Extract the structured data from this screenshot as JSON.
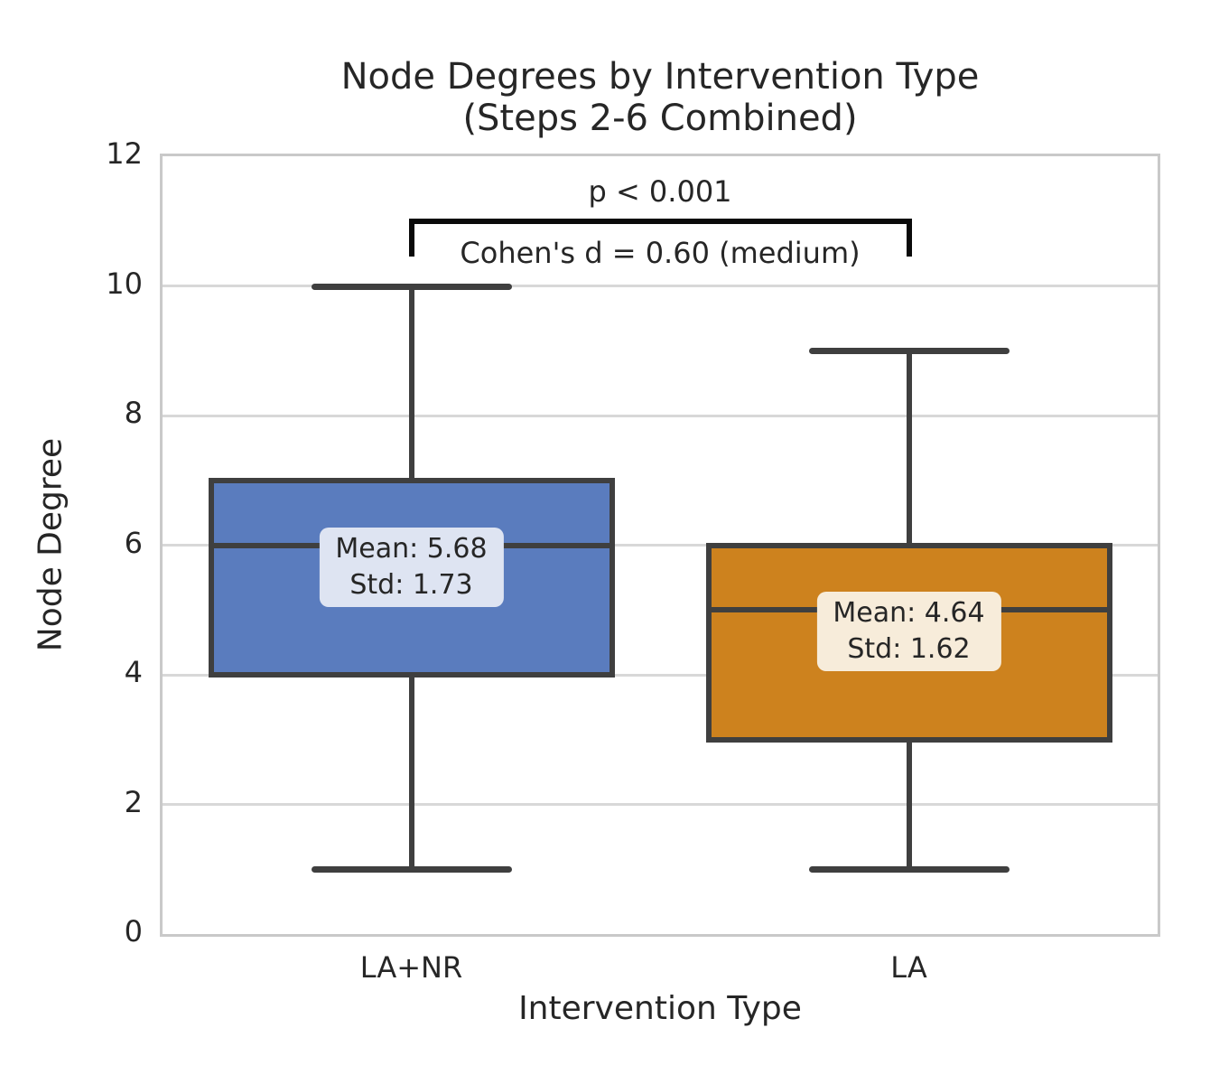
{
  "chart_data": {
    "type": "box",
    "title_lines": [
      "Node Degrees by Intervention Type",
      "(Steps 2-6 Combined)"
    ],
    "xlabel": "Intervention Type",
    "ylabel": "Node Degree",
    "ylim": [
      0,
      12
    ],
    "yticks": [
      0,
      2,
      4,
      6,
      8,
      10,
      12
    ],
    "grid": true,
    "legend": "none",
    "categories": [
      "LA+NR",
      "LA"
    ],
    "boxes": [
      {
        "category": "LA+NR",
        "whisker_low": 1,
        "q1": 4,
        "median": 6,
        "q3": 7,
        "whisker_high": 10,
        "mean": 5.68,
        "std": 1.73,
        "fill_color": "#5A7CBE",
        "annotation_lines": [
          "Mean: 5.68",
          "Std: 1.73"
        ],
        "annotation_bg": "#DEE4F2"
      },
      {
        "category": "LA",
        "whisker_low": 1,
        "q1": 3,
        "median": 5,
        "q3": 6,
        "whisker_high": 9,
        "mean": 4.64,
        "std": 1.62,
        "fill_color": "#CD821E",
        "annotation_lines": [
          "Mean: 4.64",
          "Std: 1.62"
        ],
        "annotation_bg": "#F7ECDA"
      }
    ],
    "significance": {
      "p_label": "p < 0.001",
      "effect_label": "Cohen's d = 0.60 (medium)",
      "bracket_value": 11.0,
      "bracket_tick_value": 10.5
    },
    "colors": {
      "box_edge": "#3F3F3F",
      "grid": "#D8D8D8",
      "frame": "#C9C9C9",
      "bracket": "#0A0A0A",
      "text": "#262626"
    }
  }
}
